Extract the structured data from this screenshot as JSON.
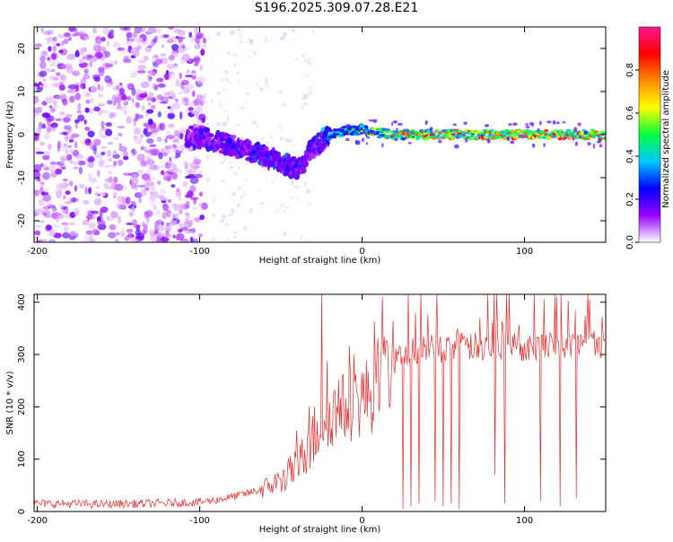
{
  "title": "S196.2025.309.07.28.E21",
  "colors": {
    "snr_line": "#ee2b2b",
    "background": "#ffffff",
    "axis": "#000000"
  },
  "chart_data": [
    {
      "type": "heatmap",
      "name": "spectrogram",
      "title": "S196.2025.309.07.28.E21",
      "xlabel": "Height of straight line (km)",
      "ylabel": "Frequency (Hz)",
      "xlim": [
        -202,
        150
      ],
      "ylim": [
        -25,
        25
      ],
      "x_ticks": [
        -200,
        -100,
        0,
        100
      ],
      "x_tick_labels": [
        "-200",
        "-100",
        "0",
        "100"
      ],
      "y_ticks": [
        -20,
        -10,
        0,
        10,
        20
      ],
      "y_tick_labels": [
        "-20",
        "-10",
        "0",
        "10",
        "20"
      ],
      "colorbar": {
        "label": "Normalized spectral amplitude",
        "range": [
          0,
          1
        ],
        "ticks": [
          0.0,
          0.2,
          0.4,
          0.6,
          0.8
        ],
        "tick_labels": [
          "0.0",
          "0.2",
          "0.4",
          "0.6",
          "0.8"
        ],
        "colormap": [
          "#ffffff",
          "#9a00ff",
          "#0000ff",
          "#00c8ff",
          "#00ff3c",
          "#ffff00",
          "#ff8c00",
          "#ff0000",
          "#ff1493"
        ]
      },
      "ridge": {
        "description": "dominant frequency track",
        "x": [
          -105,
          -90,
          -80,
          -70,
          -60,
          -50,
          -40,
          -35,
          -30,
          -25,
          -20,
          -10,
          0,
          10,
          20,
          40,
          60,
          80,
          100,
          120,
          150
        ],
        "y": [
          -0.5,
          -1.5,
          -2.5,
          -4,
          -5,
          -6.5,
          -8,
          -6,
          -3,
          -1.5,
          0,
          1,
          1,
          0.5,
          0,
          0,
          0,
          0,
          0,
          0,
          0
        ],
        "amplitude": [
          0.25,
          0.3,
          0.3,
          0.3,
          0.3,
          0.3,
          0.3,
          0.3,
          0.3,
          0.35,
          0.45,
          0.5,
          0.55,
          0.7,
          0.8,
          0.9,
          0.95,
          0.95,
          0.95,
          0.95,
          0.95
        ]
      }
    },
    {
      "type": "line",
      "name": "snr",
      "xlabel": "Height of straight line (km)",
      "ylabel": "SNR (10 * v/v)",
      "xlim": [
        -202,
        150
      ],
      "ylim": [
        0,
        415
      ],
      "x_ticks": [
        -200,
        -100,
        0,
        100
      ],
      "x_tick_labels": [
        "-200",
        "-100",
        "0",
        "100"
      ],
      "y_ticks": [
        0,
        100,
        200,
        300,
        400
      ],
      "y_tick_labels": [
        "0",
        "100",
        "200",
        "300",
        "400"
      ],
      "series": [
        {
          "name": "SNR",
          "x": [
            -200,
            -180,
            -160,
            -140,
            -120,
            -100,
            -90,
            -80,
            -70,
            -60,
            -50,
            -40,
            -35,
            -30,
            -25,
            -20,
            -10,
            0,
            10,
            15,
            20,
            25,
            30,
            40,
            60,
            80,
            100,
            120,
            150
          ],
          "y": [
            15,
            15,
            14,
            15,
            16,
            18,
            22,
            28,
            35,
            45,
            60,
            85,
            110,
            140,
            165,
            185,
            200,
            215,
            235,
            260,
            290,
            300,
            305,
            310,
            315,
            315,
            315,
            318,
            320
          ]
        }
      ],
      "spikes": [
        {
          "x": -25,
          "y": 415
        },
        {
          "x": -5,
          "y": 300
        },
        {
          "x": 10,
          "y": 330
        },
        {
          "x": 33,
          "y": 380
        },
        {
          "x": 60,
          "y": 390
        },
        {
          "x": 120,
          "y": 410
        },
        {
          "x": 140,
          "y": 405
        }
      ],
      "dropouts": [
        {
          "x": 25,
          "y": 5
        },
        {
          "x": 30,
          "y": 10
        },
        {
          "x": 35,
          "y": 15
        },
        {
          "x": 45,
          "y": 20
        },
        {
          "x": 50,
          "y": 10
        },
        {
          "x": 55,
          "y": 15
        },
        {
          "x": 60,
          "y": 5
        },
        {
          "x": 82,
          "y": 70
        },
        {
          "x": 88,
          "y": 15
        },
        {
          "x": 110,
          "y": 20
        },
        {
          "x": 122,
          "y": 10
        },
        {
          "x": 132,
          "y": 25
        }
      ]
    }
  ]
}
